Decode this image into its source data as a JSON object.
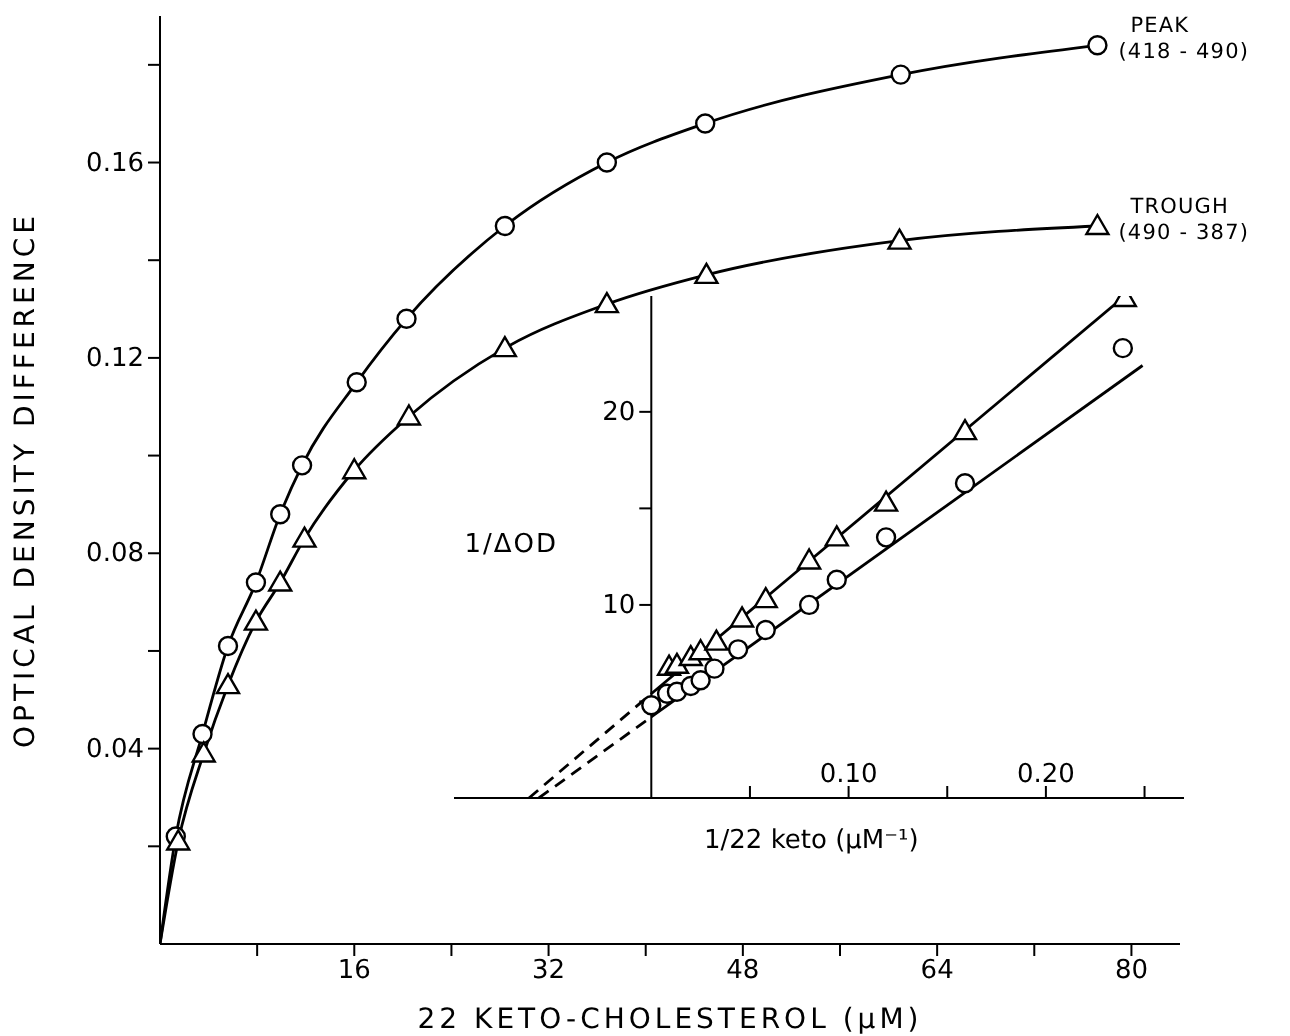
{
  "chart_data": [
    {
      "type": "scatter",
      "xlabel": "22 KETO-CHOLESTEROL (μM)",
      "ylabel": "OPTICAL DENSITY DIFFERENCE",
      "xlim": [
        0,
        84
      ],
      "xticks": [
        {
          "value": 8,
          "label": null
        },
        16,
        {
          "value": 24,
          "label": null
        },
        32,
        {
          "value": 40,
          "label": null
        },
        48,
        {
          "value": 56,
          "label": null
        },
        64,
        {
          "value": 72,
          "label": null
        },
        80
      ],
      "ylim": [
        0,
        0.19
      ],
      "yticks": [
        {
          "value": 0.02,
          "label": null
        },
        0.04,
        {
          "value": 0.06,
          "label": null
        },
        0.08,
        {
          "value": 0.1,
          "label": null
        },
        0.12,
        {
          "value": 0.14,
          "label": null
        },
        0.16,
        {
          "value": 0.18,
          "label": null
        }
      ],
      "series": [
        {
          "name": "PEAK (418 - 490)",
          "type": "scatter",
          "marker": "circle",
          "color": "#000000",
          "x": [
            1.3,
            3.5,
            5.6,
            7.9,
            9.9,
            11.7,
            16.2,
            20.3,
            28.4,
            36.8,
            44.9,
            61.0,
            77.2
          ],
          "values": [
            0.022,
            0.043,
            0.061,
            0.074,
            0.088,
            0.098,
            0.115,
            0.128,
            0.147,
            0.16,
            0.168,
            0.178,
            0.184
          ]
        },
        {
          "type": "line",
          "marker": "none",
          "color": "#000000",
          "x": [
            0,
            1.3,
            3.5,
            5.6,
            7.9,
            9.9,
            11.7,
            16.2,
            20.3,
            28.4,
            36.8,
            44.9,
            61.0,
            77.2
          ],
          "values": [
            0,
            0.022,
            0.043,
            0.061,
            0.074,
            0.088,
            0.098,
            0.115,
            0.128,
            0.147,
            0.16,
            0.168,
            0.178,
            0.184
          ]
        },
        {
          "name": "TROUGH (490 - 387)",
          "type": "scatter",
          "marker": "triangle",
          "color": "#000000",
          "x": [
            1.5,
            3.6,
            5.6,
            7.9,
            9.9,
            11.9,
            16.0,
            20.5,
            28.4,
            36.8,
            45.0,
            60.9,
            77.2
          ],
          "values": [
            0.021,
            0.039,
            0.053,
            0.066,
            0.074,
            0.083,
            0.097,
            0.108,
            0.122,
            0.131,
            0.137,
            0.144,
            0.147
          ]
        },
        {
          "type": "line",
          "marker": "none",
          "color": "#000000",
          "x": [
            0,
            1.5,
            3.6,
            5.6,
            7.9,
            9.9,
            11.9,
            16.0,
            20.5,
            28.4,
            36.8,
            45.0,
            60.9,
            77.2
          ],
          "values": [
            0,
            0.021,
            0.039,
            0.053,
            0.066,
            0.074,
            0.083,
            0.097,
            0.108,
            0.122,
            0.131,
            0.137,
            0.144,
            0.147
          ]
        }
      ]
    },
    {
      "type": "scatter",
      "xlabel": "1/22 keto (μM⁻¹)",
      "ylabel": "1/ΔOD",
      "xlim": [
        -0.1,
        0.27
      ],
      "xticks": [
        {
          "value": 0.05,
          "label": null
        },
        {
          "value": 0.1,
          "label": "0.10"
        },
        {
          "value": 0.15,
          "label": null
        },
        {
          "value": 0.2,
          "label": "0.20"
        },
        {
          "value": 0.25,
          "label": null
        }
      ],
      "ylim": [
        0,
        26
      ],
      "yticks": [
        {
          "value": 5,
          "label": null
        },
        10,
        {
          "value": 15,
          "label": null
        },
        20
      ],
      "series": [
        {
          "type": "scatter",
          "marker": "circle",
          "color": "#000000",
          "x": [
            0.0,
            0.008,
            0.013,
            0.02,
            0.025,
            0.032,
            0.044,
            0.058,
            0.08,
            0.094,
            0.119,
            0.159,
            0.239
          ],
          "values": [
            4.8,
            5.4,
            5.5,
            5.8,
            6.1,
            6.7,
            7.7,
            8.7,
            10.0,
            11.3,
            13.5,
            16.3,
            23.3
          ]
        },
        {
          "type": "scatter",
          "marker": "triangle",
          "color": "#000000",
          "x": [
            0.009,
            0.013,
            0.02,
            0.025,
            0.033,
            0.046,
            0.058,
            0.08,
            0.094,
            0.119,
            0.159,
            0.24
          ],
          "values": [
            6.8,
            6.9,
            7.3,
            7.6,
            8.1,
            9.3,
            10.3,
            12.3,
            13.5,
            15.3,
            19.0,
            25.9
          ]
        },
        {
          "type": "line",
          "marker": "none",
          "line_style": "solid",
          "color": "#000000",
          "x": [
            0,
            0.249
          ],
          "values": [
            4.2,
            22.4
          ]
        },
        {
          "type": "line",
          "marker": "none",
          "line_style": "dashed",
          "color": "#000000",
          "x": [
            -0.057,
            0
          ],
          "values": [
            0,
            4.2
          ]
        },
        {
          "type": "line",
          "marker": "none",
          "line_style": "solid",
          "color": "#000000",
          "x": [
            0,
            0.24
          ],
          "values": [
            5.4,
            26
          ]
        },
        {
          "type": "line",
          "marker": "none",
          "line_style": "dashed",
          "color": "#000000",
          "x": [
            -0.062,
            0
          ],
          "values": [
            0,
            5.4
          ]
        }
      ]
    }
  ]
}
